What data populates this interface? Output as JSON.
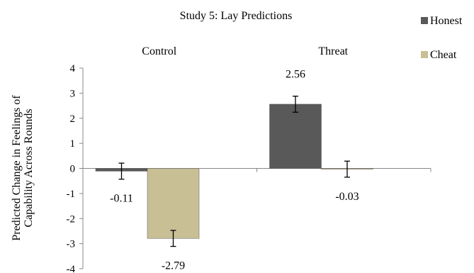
{
  "chart_data": {
    "type": "bar",
    "title": "Study 5: Lay Predictions",
    "ylabel": [
      "Predicted Change in Feelings of",
      "Capability Across Rounds"
    ],
    "xlabel": "",
    "categories": [
      "Control",
      "Threat"
    ],
    "ylim": [
      -4,
      4
    ],
    "yticks": [
      4,
      3,
      2,
      1,
      0,
      -1,
      -2,
      -3,
      -4
    ],
    "grid": false,
    "legend_position": "right",
    "series": [
      {
        "name": "Honest",
        "color": "#595959",
        "values": [
          -0.11,
          2.56
        ],
        "labels": [
          "-0.11",
          "2.56"
        ],
        "error": [
          0.32,
          0.32
        ]
      },
      {
        "name": "Cheat",
        "color": "#c9bf95",
        "values": [
          -2.79,
          -0.03
        ],
        "labels": [
          "-2.79",
          "-0.03"
        ],
        "error": [
          0.32,
          0.32
        ]
      }
    ]
  }
}
